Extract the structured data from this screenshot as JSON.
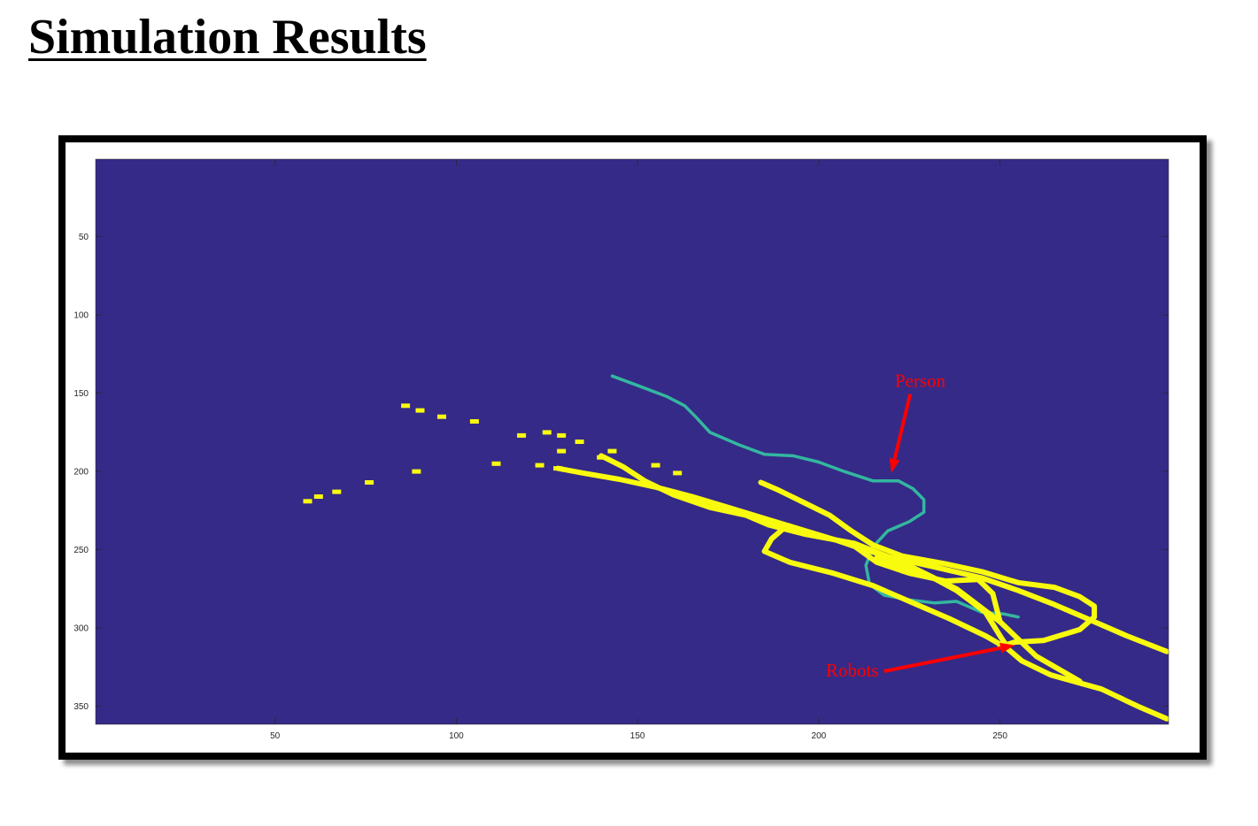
{
  "page": {
    "title": "Simulation Results"
  },
  "chart_data": {
    "type": "heatmap",
    "title": "",
    "xlabel": "",
    "ylabel": "",
    "xlim": [
      0.5,
      296.5
    ],
    "ylim": [
      0.5,
      361.5
    ],
    "y_axis_reversed": true,
    "grid": false,
    "x_ticks": [
      50,
      100,
      150,
      200,
      250
    ],
    "y_ticks": [
      50,
      100,
      150,
      200,
      250,
      300,
      350
    ],
    "colors": {
      "background": "#352a87",
      "robots": "#f9fb0e",
      "person": "#33b7a0"
    },
    "series": [
      {
        "name": "Person",
        "type": "line",
        "x": [
          143,
          150,
          158,
          163,
          166,
          170,
          178,
          185,
          193,
          200,
          207,
          215,
          222,
          226,
          229,
          229,
          225,
          219,
          215,
          213,
          214,
          218,
          225,
          232,
          238,
          241,
          245,
          251,
          255
        ],
        "y": [
          139,
          145,
          152,
          158,
          165,
          175,
          183,
          189,
          190,
          194,
          200,
          206,
          206,
          211,
          218,
          226,
          232,
          238,
          248,
          260,
          272,
          279,
          282,
          284,
          283,
          286,
          290,
          291,
          293
        ]
      },
      {
        "name": "Robots",
        "type": "line",
        "x": [
          128,
          135,
          145,
          155,
          165,
          175,
          185,
          195,
          205,
          210,
          220,
          230,
          245,
          255,
          265,
          275,
          285,
          296
        ],
        "y": [
          198,
          201,
          205,
          210,
          216,
          223,
          230,
          237,
          244,
          248,
          255,
          260,
          268,
          276,
          285,
          295,
          305,
          315
        ]
      },
      {
        "name": "Robots",
        "type": "line",
        "x": [
          140,
          146,
          152,
          160,
          170,
          180,
          186,
          196,
          210,
          223,
          238,
          250,
          260,
          272
        ],
        "y": [
          190,
          197,
          206,
          215,
          223,
          228,
          234,
          240,
          246,
          258,
          275,
          296,
          318,
          334
        ]
      },
      {
        "name": "Robots",
        "type": "line",
        "x": [
          184,
          189,
          196,
          203,
          209,
          215,
          223,
          235,
          245,
          255,
          265,
          272,
          276,
          276,
          272,
          262,
          254,
          250
        ],
        "y": [
          207,
          212,
          220,
          228,
          238,
          247,
          254,
          259,
          264,
          271,
          274,
          280,
          286,
          293,
          301,
          308,
          309,
          312
        ]
      },
      {
        "name": "Robots",
        "type": "line",
        "x": [
          190,
          187,
          185,
          192,
          204,
          215,
          225,
          236,
          246,
          252,
          256,
          264,
          278,
          288,
          296
        ],
        "y": [
          237,
          243,
          251,
          258,
          265,
          273,
          283,
          294,
          305,
          313,
          321,
          330,
          339,
          350,
          358
        ]
      },
      {
        "name": "Robots",
        "type": "line",
        "x": [
          210,
          216,
          225,
          235,
          244,
          248,
          250
        ],
        "y": [
          248,
          258,
          265,
          270,
          269,
          278,
          296
        ]
      },
      {
        "name": "Robots",
        "type": "line",
        "x": [
          216,
          222,
          230,
          238,
          246,
          250,
          252
        ],
        "y": [
          255,
          260,
          266,
          276,
          290,
          305,
          312
        ]
      },
      {
        "name": "Robots",
        "type": "scatter",
        "x": [
          86,
          90,
          96,
          105,
          118,
          125,
          129,
          134,
          129,
          140,
          143,
          111,
          123,
          128,
          89,
          76,
          67,
          62,
          59,
          155,
          161
        ],
        "y": [
          158,
          161,
          165,
          168,
          177,
          175,
          177,
          181,
          187,
          191,
          187,
          195,
          196,
          198,
          200,
          207,
          213,
          216,
          219,
          196,
          201
        ]
      }
    ],
    "annotations": [
      {
        "text": "Person",
        "x": 221,
        "y": 146,
        "arrow_to": [
          220,
          201
        ]
      },
      {
        "text": "Robots",
        "x": 202,
        "y": 331,
        "arrow_to": [
          254,
          311
        ]
      }
    ]
  }
}
